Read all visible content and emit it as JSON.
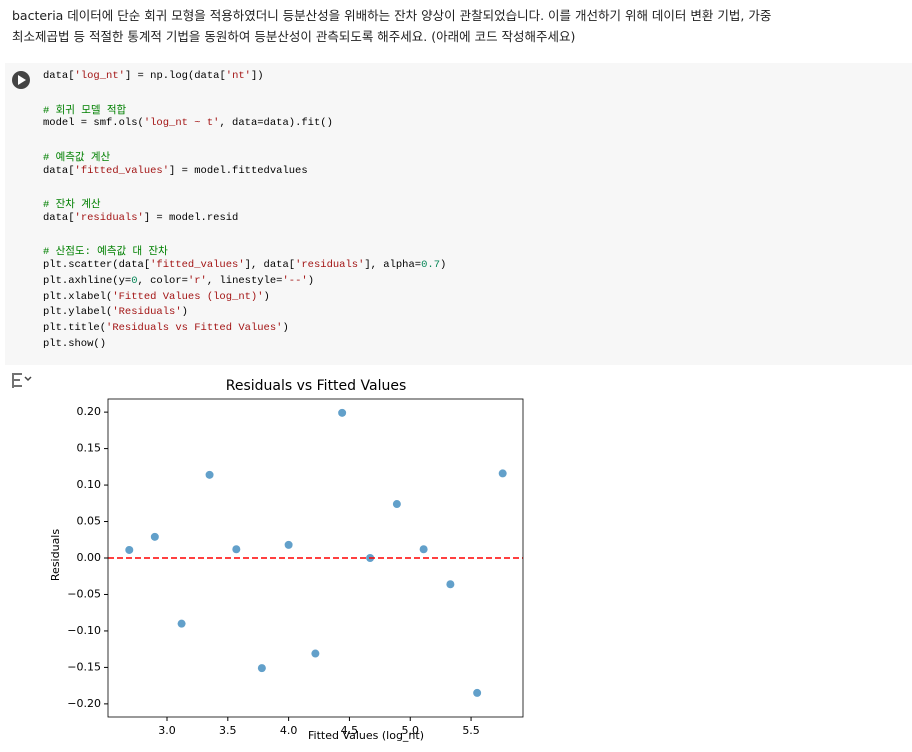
{
  "prompt": {
    "lines": [
      "bacteria 데이터에 단순 회귀 모형을 적용하였더니 등분산성을 위배하는 잔차 양상이 관찰되었습니다. 이를 개선하기 위해 데이터 변환 기법, 가중",
      "최소제곱법 등 적절한 통계적 기법을 동원하여 등분산성이 관측되도록 해주세요. (아래에 코드 작성해주세요)"
    ]
  },
  "code": {
    "blocks": [
      [
        "data['log_nt'] = np.log(data['nt'])"
      ],
      [
        "# 회귀 모델 적합",
        "model = smf.ols('log_nt ~ t', data=data).fit()"
      ],
      [
        "# 예측값 계산",
        "data['fitted_values'] = model.fittedvalues"
      ],
      [
        "# 잔차 계산",
        "data['residuals'] = model.resid"
      ],
      [
        "# 산점도: 예측값 대 잔차",
        "plt.scatter(data['fitted_values'], data['residuals'], alpha=0.7)",
        "plt.axhline(y=0, color='r', linestyle='--')",
        "plt.xlabel('Fitted Values (log_nt)')",
        "plt.ylabel('Residuals')",
        "plt.title('Residuals vs Fitted Values')",
        "plt.show()"
      ]
    ]
  },
  "chart_data": {
    "type": "scatter",
    "title": "Residuals vs Fitted Values",
    "x_label": "Fitted Values (log_nt)",
    "y_label": "Residuals",
    "series": [
      {
        "color": "#1f77b4",
        "x": [
          2.69,
          2.9,
          3.12,
          3.35,
          3.57,
          3.78,
          4.0,
          4.22,
          4.44,
          4.67,
          4.89,
          5.11,
          5.33,
          5.55,
          5.76
        ],
        "values": [
          0.011,
          0.029,
          -0.09,
          0.114,
          0.012,
          -0.151,
          0.018,
          -0.131,
          0.199,
          0.0,
          0.074,
          0.012,
          -0.036,
          -0.185,
          0.116
        ]
      }
    ],
    "hline": {
      "y": 0,
      "color": "#ff0000"
    },
    "xlim": [
      2.515,
      5.927
    ],
    "ylim": [
      -0.218,
      0.218
    ],
    "xticks": [
      {
        "value": 3,
        "label": "3.0"
      },
      {
        "value": 3.5,
        "label": "3.5"
      },
      {
        "value": 4,
        "label": "4.0"
      },
      {
        "value": 4.5,
        "label": "4.5"
      },
      {
        "value": 5,
        "label": "5.0"
      },
      {
        "value": 5.5,
        "label": "5.5"
      }
    ],
    "yticks": [
      {
        "value": -0.2,
        "label": "−0.20"
      },
      {
        "value": -0.15,
        "label": "−0.15"
      },
      {
        "value": -0.1,
        "label": "−0.10"
      },
      {
        "value": -0.05,
        "label": "−0.05"
      },
      {
        "value": 0,
        "label": "0.00"
      },
      {
        "value": 0.05,
        "label": "0.05"
      },
      {
        "value": 0.1,
        "label": "0.10"
      },
      {
        "value": 0.15,
        "label": "0.15"
      },
      {
        "value": 0.2,
        "label": "0.20"
      }
    ]
  }
}
